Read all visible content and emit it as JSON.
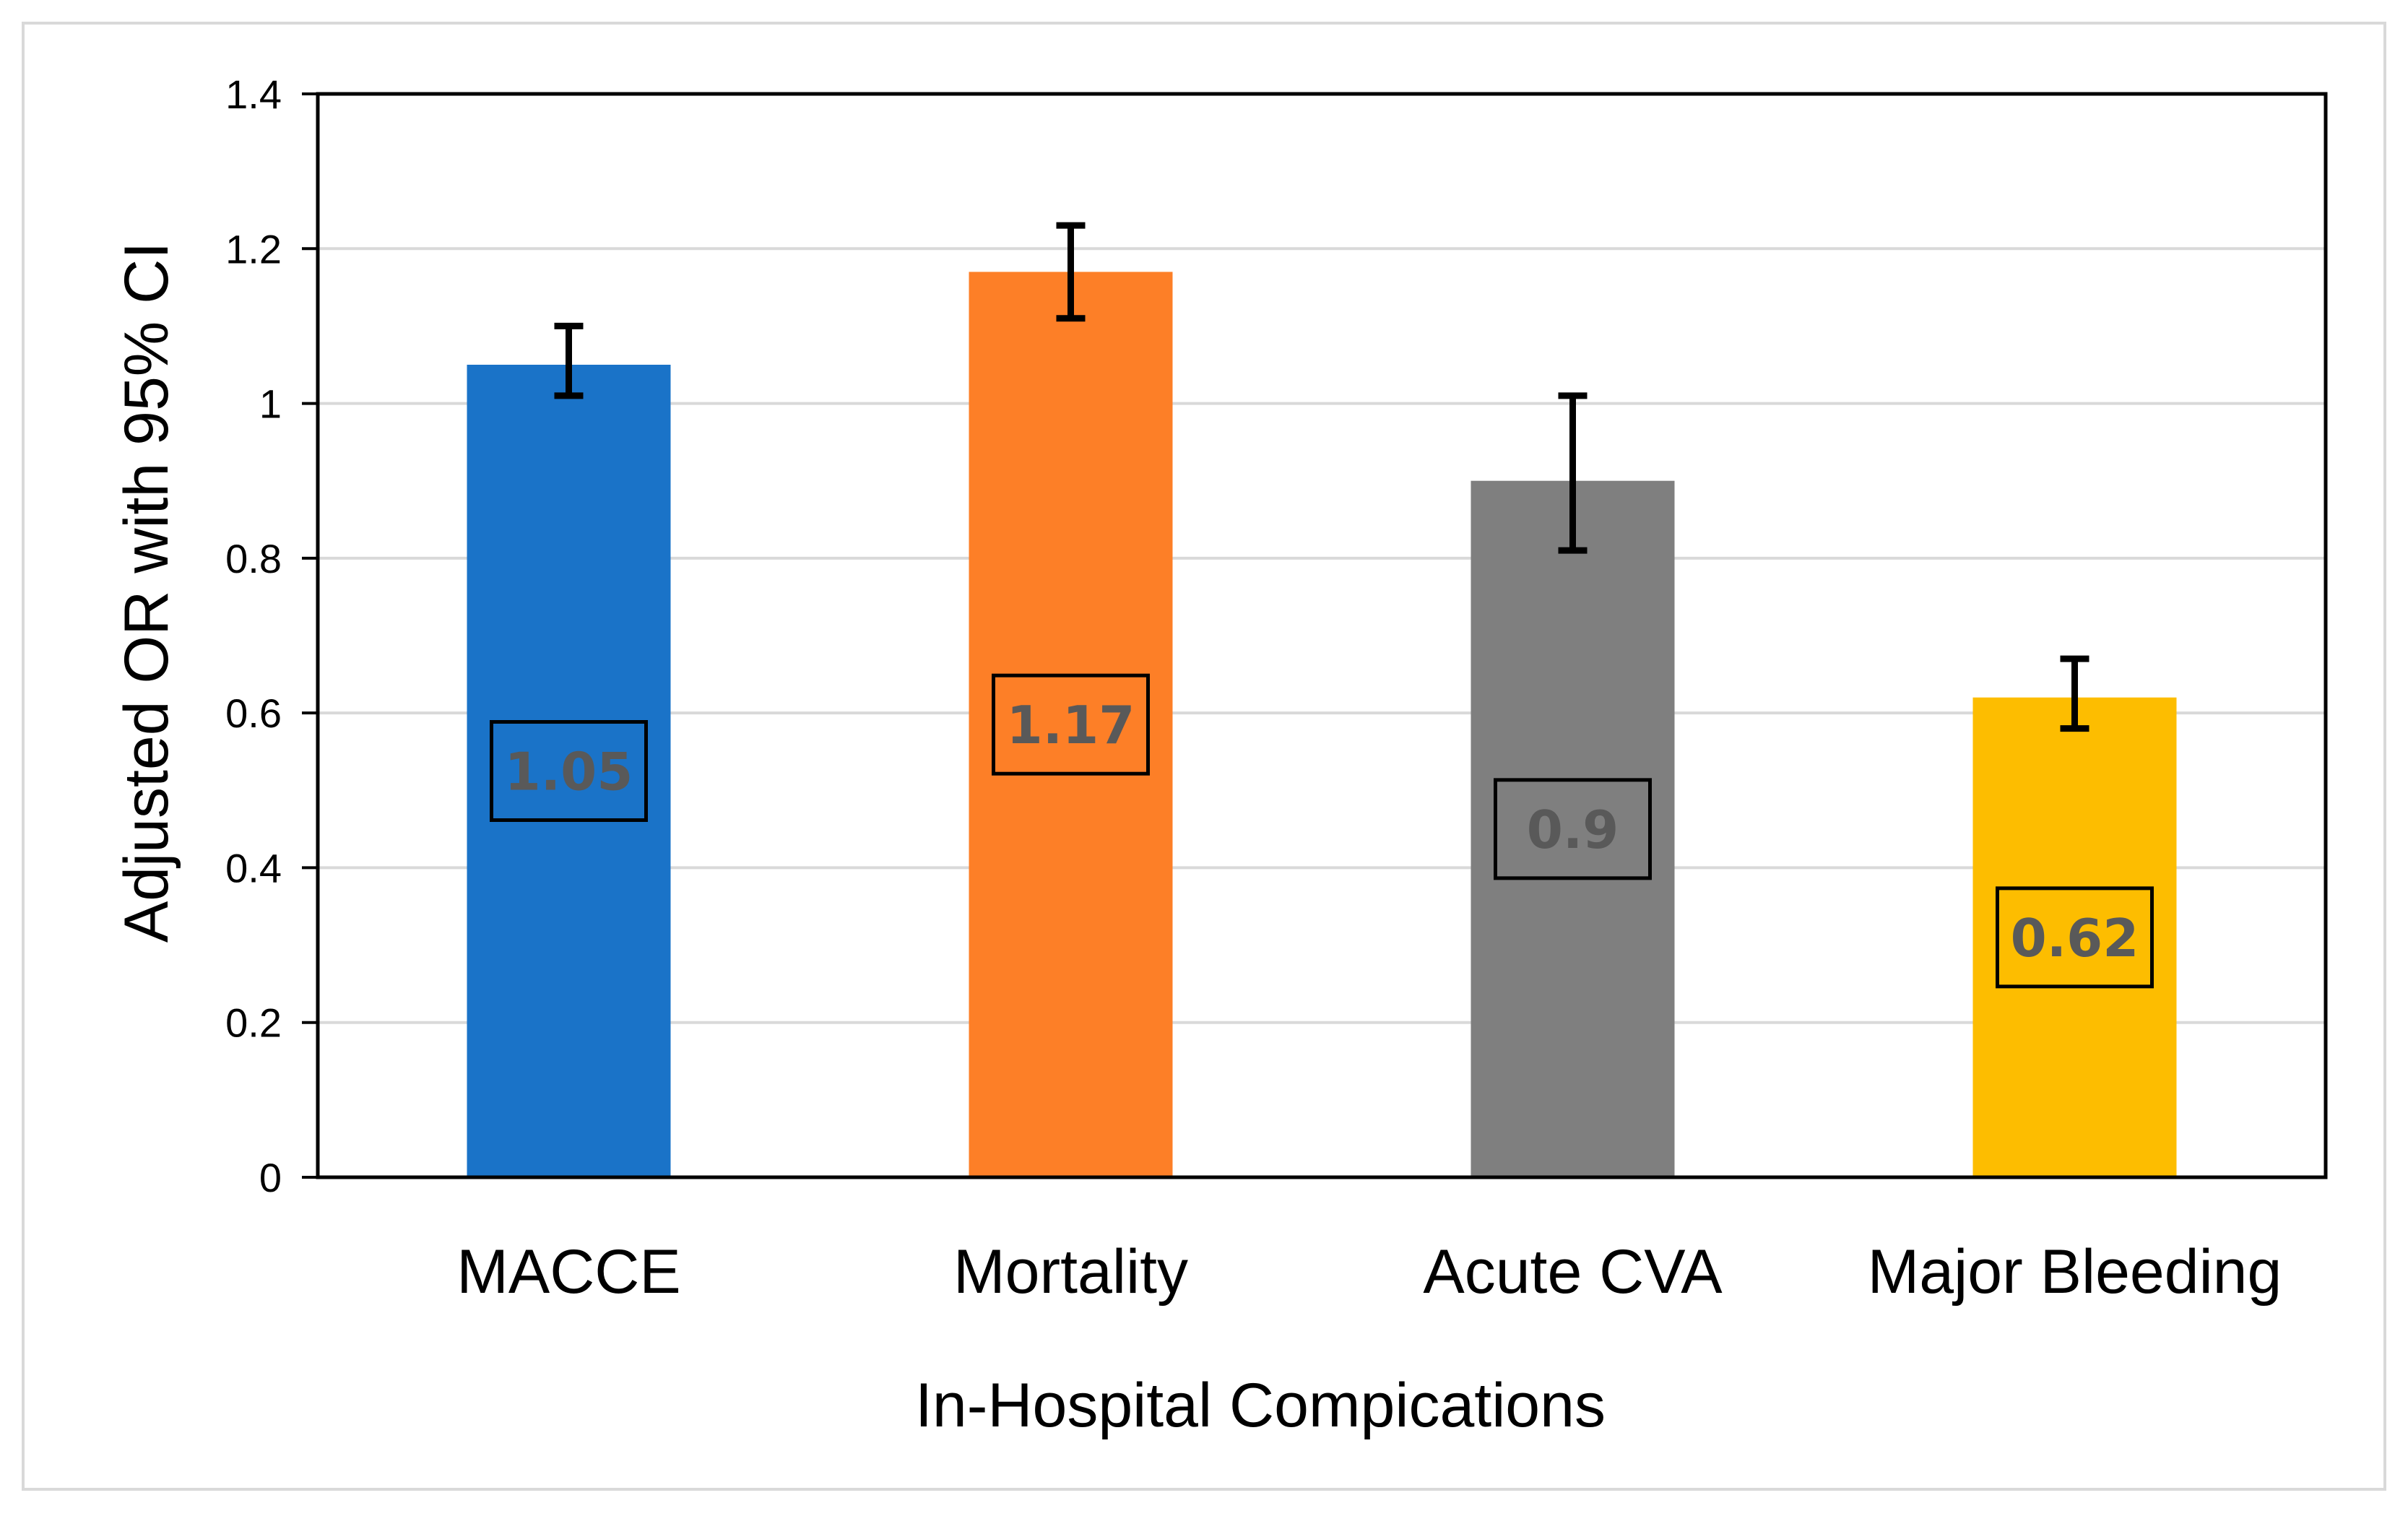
{
  "chart_data": {
    "type": "bar",
    "categories": [
      "MACCE",
      "Mortality",
      "Acute CVA",
      "Major Bleeding"
    ],
    "values": [
      1.05,
      1.17,
      0.9,
      0.62
    ],
    "ci_low": [
      1.01,
      1.11,
      0.81,
      0.58
    ],
    "ci_high": [
      1.1,
      1.23,
      1.01,
      0.67
    ],
    "data_labels": [
      "1.05",
      "1.17",
      "0.9",
      "0.62"
    ],
    "colors": [
      "#1a73c8",
      "#fd7f27",
      "#7f7f7f",
      "#fdbd00"
    ],
    "title": "",
    "xlabel": "In-Hospital Compications",
    "ylabel": "Adjusted OR with 95% CI",
    "ylim": [
      0,
      1.4
    ],
    "yticks": [
      0,
      0.2,
      0.4,
      0.6,
      0.8,
      1,
      1.2,
      1.4
    ],
    "ytick_labels": [
      "0",
      "0.2",
      "0.4",
      "0.6",
      "0.8",
      "1",
      "1.2",
      "1.4"
    ],
    "grid": true,
    "gridline_color": "#d9d9d9",
    "legend": "none"
  }
}
